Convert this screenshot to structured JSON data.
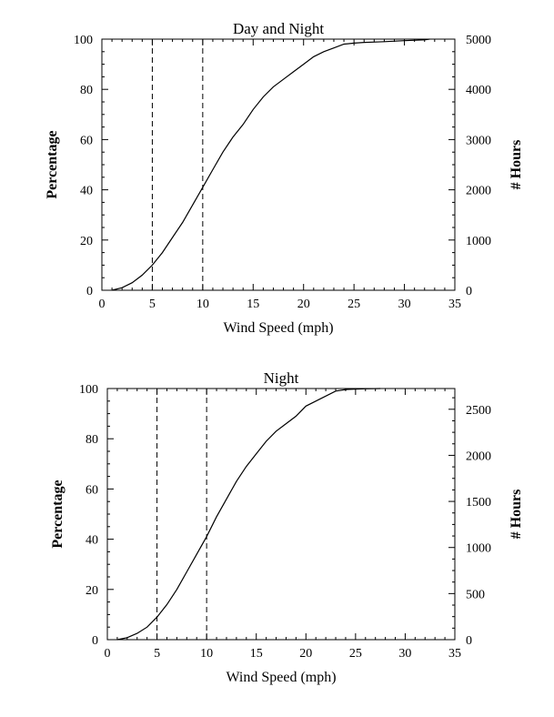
{
  "chart_data": [
    {
      "type": "line",
      "title": "Day and Night",
      "xlabel": "Wind Speed (mph)",
      "ylabel": "Percentage",
      "y2label": "# Hours",
      "xlim": [
        0,
        35
      ],
      "ylim": [
        0,
        100
      ],
      "y2lim": [
        0,
        5000
      ],
      "xticks": [
        0,
        5,
        10,
        15,
        20,
        25,
        30,
        35
      ],
      "yticks": [
        0,
        20,
        40,
        60,
        80,
        100
      ],
      "y2ticks": [
        0,
        1000,
        2000,
        3000,
        4000,
        5000
      ],
      "reference_lines_x": [
        5,
        10
      ],
      "series": [
        {
          "x": [
            1,
            2,
            3,
            4,
            5,
            6,
            7,
            8,
            9,
            10,
            11,
            12,
            13,
            14,
            15,
            16,
            17,
            18,
            19,
            20,
            21,
            22,
            23,
            24,
            25,
            26,
            28,
            30,
            32,
            32.5
          ],
          "values": [
            0,
            1,
            3,
            6,
            10,
            15,
            21,
            27,
            34,
            41,
            48,
            55,
            61,
            66,
            72,
            77,
            81,
            84,
            87,
            90,
            93,
            95,
            96.5,
            98,
            98.4,
            98.7,
            99,
            99.4,
            99.7,
            100
          ]
        }
      ]
    },
    {
      "type": "line",
      "title": "Night",
      "xlabel": "Wind Speed (mph)",
      "ylabel": "Percentage",
      "y2label": "# Hours",
      "xlim": [
        0,
        35
      ],
      "ylim": [
        0,
        100
      ],
      "y2lim": [
        0,
        2725
      ],
      "xticks": [
        0,
        5,
        10,
        15,
        20,
        25,
        30,
        35
      ],
      "yticks": [
        0,
        20,
        40,
        60,
        80,
        100
      ],
      "y2ticks": [
        0,
        500,
        1000,
        1500,
        2000,
        2500
      ],
      "reference_lines_x": [
        5,
        10
      ],
      "series": [
        {
          "x": [
            1,
            2,
            3,
            4,
            5,
            6,
            7,
            8,
            9,
            10,
            11,
            12,
            13,
            14,
            15,
            16,
            17,
            18,
            19,
            20,
            21,
            22,
            23,
            24,
            25,
            26,
            27.5
          ],
          "values": [
            0,
            0.8,
            2.5,
            5,
            9,
            14,
            20,
            27,
            34,
            41,
            49,
            56,
            63,
            69,
            74,
            79,
            83,
            86,
            89,
            93,
            95,
            97,
            99,
            99.6,
            99.8,
            99.9,
            100
          ]
        }
      ]
    }
  ]
}
